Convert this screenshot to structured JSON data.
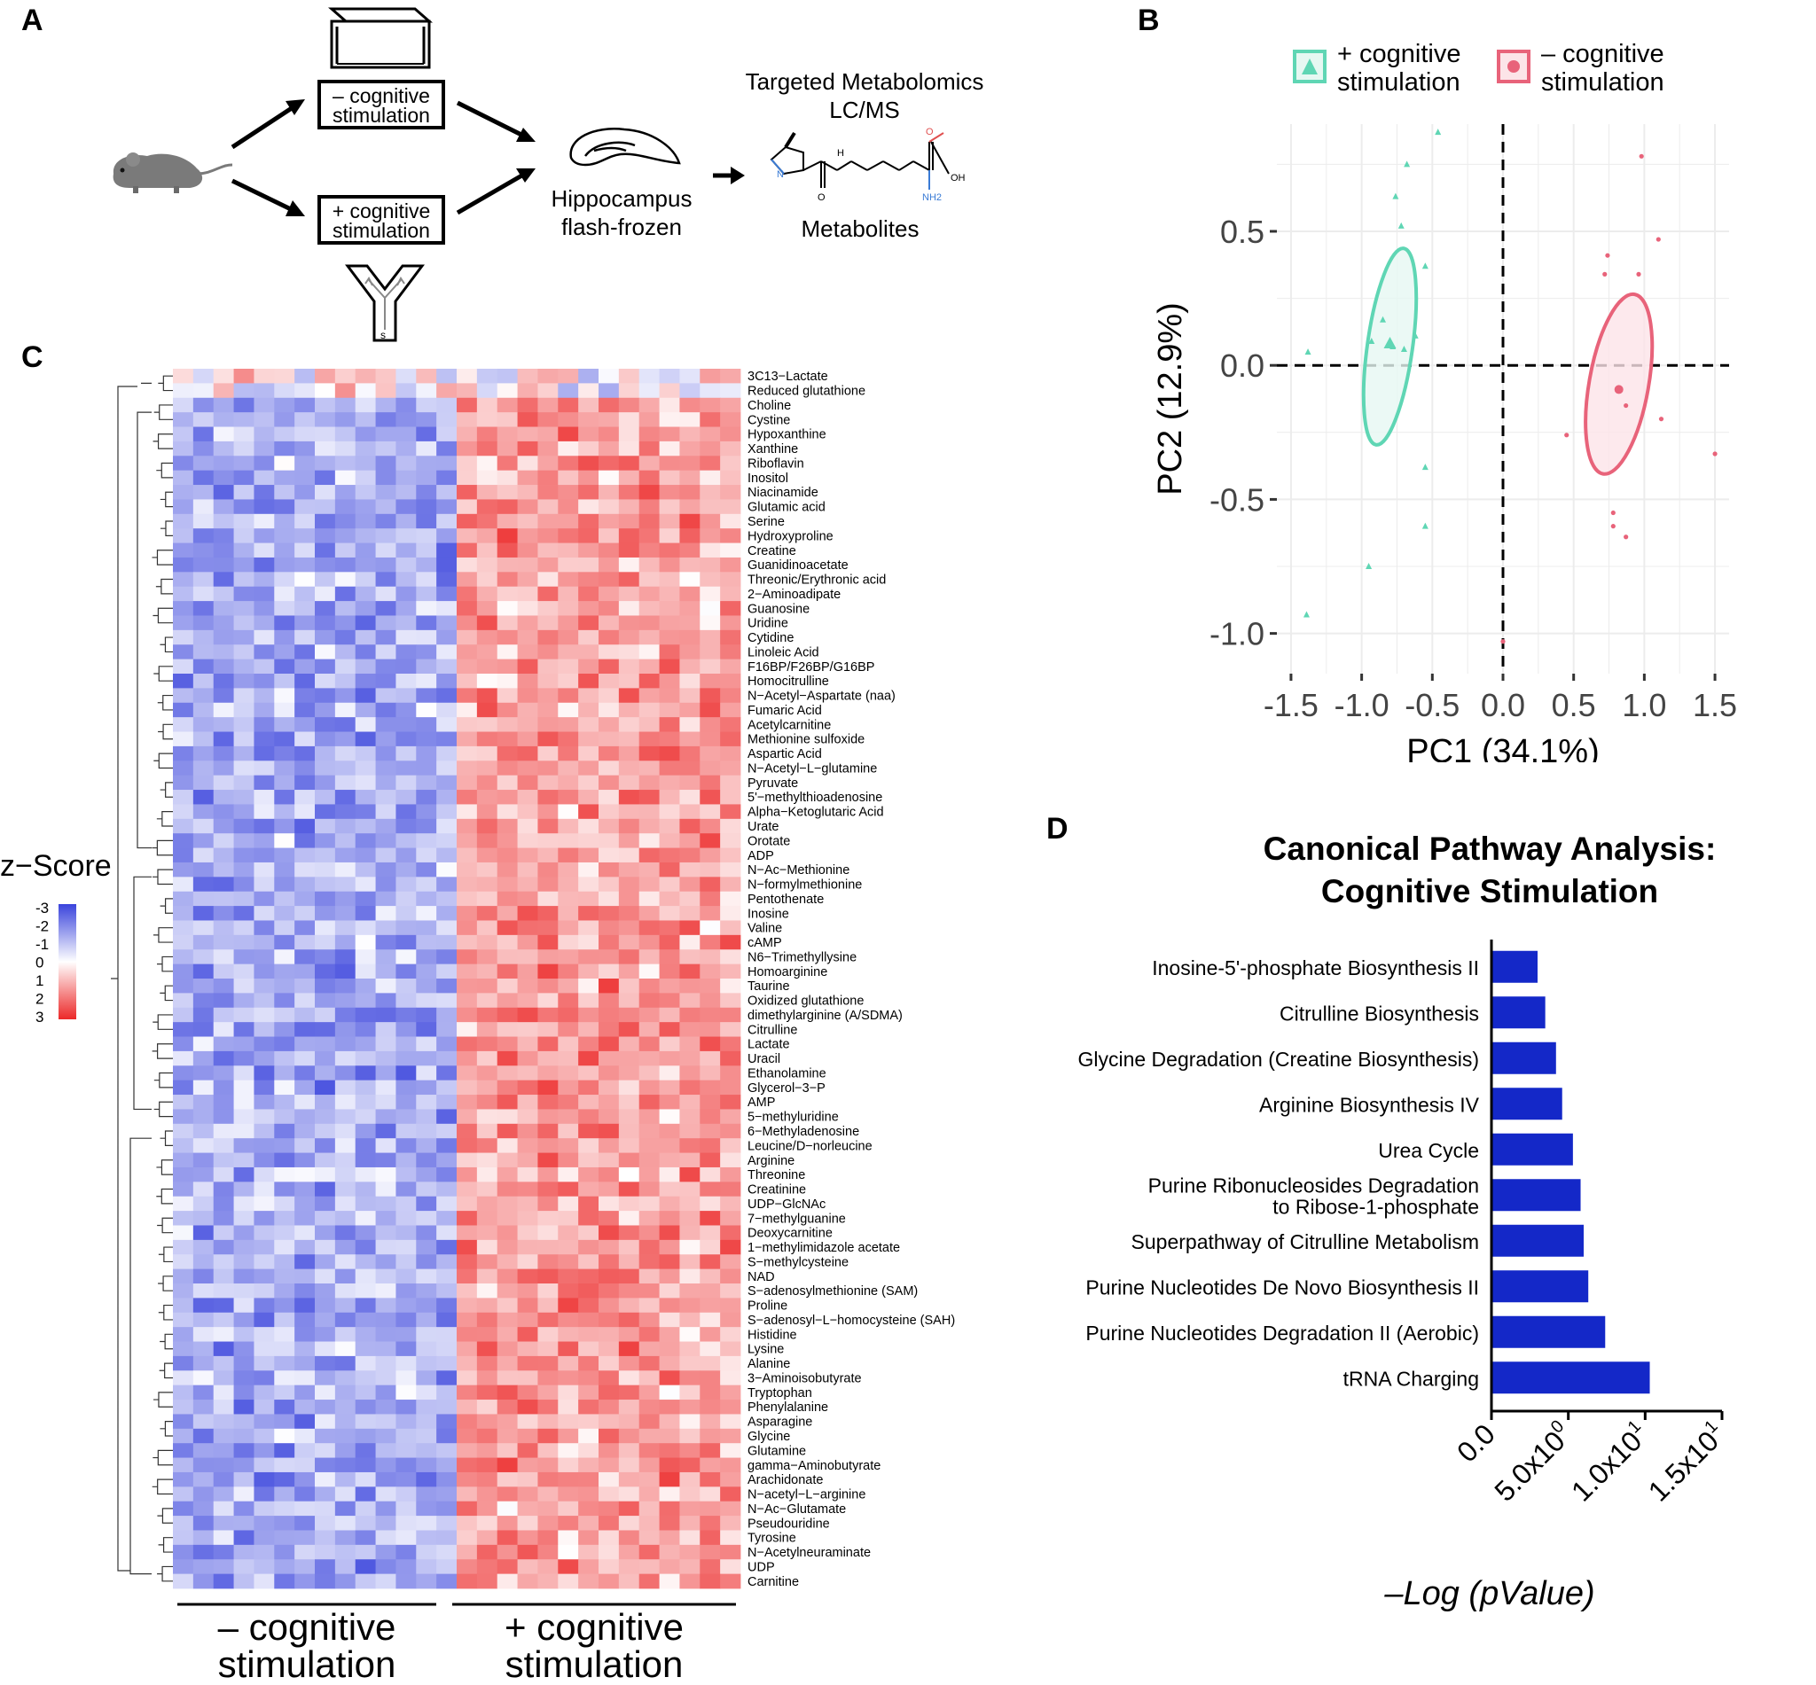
{
  "panels": {
    "a": "A",
    "b": "B",
    "c": "C",
    "d": "D"
  },
  "panel_a": {
    "minus_box_line1": "– cognitive",
    "minus_box_line2": "stimulation",
    "plus_box_line1": "+ cognitive",
    "plus_box_line2": "stimulation",
    "hippocampus_line1": "Hippocampus",
    "hippocampus_line2": "flash-frozen",
    "metabolomics_line1": "Targeted Metabolomics",
    "metabolomics_line2": "LC/MS",
    "metabolites": "Metabolites",
    "maze_label": "s",
    "struct_labels": {
      "h": "H",
      "n": "N",
      "o1": "O",
      "o2": "O",
      "oh": "OH",
      "nh2": "NH2"
    }
  },
  "chart_data": [
    {
      "type": "scatter",
      "panel": "B",
      "xlabel": "PC1 (34.1%)",
      "ylabel": "PC2 (12.9%)",
      "xlim": [
        -1.6,
        1.6
      ],
      "ylim": [
        -1.15,
        0.9
      ],
      "xticks": [
        -1.5,
        -1.0,
        -0.5,
        0.0,
        0.5,
        1.0,
        1.5
      ],
      "xtick_labels": [
        "-1.5",
        "-1.0",
        "-0.5",
        "0.0",
        "0.5",
        "1.0",
        "1.5"
      ],
      "yticks": [
        0.5,
        0.0,
        -0.5,
        -1.0
      ],
      "ytick_labels": [
        "0.5",
        "0.0",
        "-0.5",
        "-1.0"
      ],
      "grid": true,
      "legend": "top",
      "series": [
        {
          "name_line1": "+ cognitive",
          "name_line2": "stimulation",
          "marker": "triangle",
          "color": "#5fd6b4",
          "fill": "#e6f8f2",
          "centroid": [
            -0.8,
            0.08
          ],
          "ellipse": {
            "cx": -0.8,
            "cy": 0.07,
            "rx": 0.16,
            "ry": 0.37,
            "angle": 8
          },
          "points": [
            [
              -1.39,
              -0.93
            ],
            [
              -1.38,
              0.05
            ],
            [
              -0.93,
              0.09
            ],
            [
              -0.95,
              -0.75
            ],
            [
              -0.76,
              0.63
            ],
            [
              -0.72,
              0.52
            ],
            [
              -0.68,
              0.75
            ],
            [
              -0.62,
              0.11
            ],
            [
              -0.55,
              0.37
            ],
            [
              -0.55,
              -0.38
            ],
            [
              -0.55,
              -0.6
            ],
            [
              -0.46,
              0.87
            ],
            [
              -0.85,
              0.17
            ],
            [
              -0.78,
              0.07
            ],
            [
              -0.7,
              0.06
            ]
          ]
        },
        {
          "name_line1": "– cognitive",
          "name_line2": "stimulation",
          "marker": "circle",
          "color": "#e8637a",
          "fill": "#fce4e8",
          "centroid": [
            0.82,
            -0.09
          ],
          "ellipse": {
            "cx": 0.82,
            "cy": -0.07,
            "rx": 0.21,
            "ry": 0.34,
            "angle": 10
          },
          "points": [
            [
              0.0,
              -1.03
            ],
            [
              0.45,
              -0.26
            ],
            [
              0.72,
              0.34
            ],
            [
              0.74,
              0.41
            ],
            [
              0.78,
              -0.55
            ],
            [
              0.78,
              -0.6
            ],
            [
              0.87,
              -0.15
            ],
            [
              0.87,
              -0.64
            ],
            [
              0.96,
              0.34
            ],
            [
              0.98,
              0.78
            ],
            [
              1.1,
              0.47
            ],
            [
              1.12,
              -0.2
            ],
            [
              1.5,
              -0.33
            ]
          ]
        }
      ]
    },
    {
      "type": "heatmap",
      "panel": "C",
      "legend_title": "z−Score",
      "legend_ticks": [
        "-3",
        "-2",
        "-1",
        "0",
        "1",
        "2",
        "3"
      ],
      "group_labels": [
        {
          "line1": "– cognitive",
          "line2": "stimulation"
        },
        {
          "line1": "+ cognitive",
          "line2": "stimulation"
        }
      ],
      "columns_per_group": 14,
      "rows": [
        "3C13−Lactate",
        "Reduced glutathione",
        "Choline",
        "Cystine",
        "Hypoxanthine",
        "Xanthine",
        "Riboflavin",
        "Inositol",
        "Niacinamide",
        "Glutamic acid",
        "Serine",
        "Hydroxyproline",
        "Creatine",
        "Guanidinoacetate",
        "Threonic/Erythronic acid",
        "2−Aminoadipate",
        "Guanosine",
        "Uridine",
        "Cytidine",
        "Linoleic Acid",
        "F16BP/F26BP/G16BP",
        "Homocitrulline",
        "N−Acetyl−Aspartate (naa)",
        "Fumaric Acid",
        "Acetylcarnitine",
        "Methionine sulfoxide",
        "Aspartic Acid",
        "N−Acetyl−L−glutamine",
        "Pyruvate",
        "5'−methylthioadenosine",
        "Alpha−Ketoglutaric Acid",
        "Urate",
        "Orotate",
        "ADP",
        "N−Ac−Methionine",
        "N−formylmethionine",
        "Pentothenate",
        "Inosine",
        "Valine",
        "cAMP",
        "N6−Trimethyllysine",
        "Homoarginine",
        "Taurine",
        "Oxidized glutathione",
        "dimethylarginine (A/SDMA)",
        "Citrulline",
        "Lactate",
        "Uracil",
        "Ethanolamine",
        "Glycerol−3−P",
        "AMP",
        "5−methyluridine",
        "6−Methyladenosine",
        "Leucine/D−norleucine",
        "Arginine",
        "Threonine",
        "Creatinine",
        "UDP−GlcNAc",
        "7−methylguanine",
        "Deoxycarnitine",
        "1−methylimidazole acetate",
        "S−methylcysteine",
        "NAD",
        "S−adenosylmethionine (SAM)",
        "Proline",
        "S−adenosyl−L−homocysteine (SAH)",
        "Histidine",
        "Lysine",
        "Alanine",
        "3−Aminoisobutyrate",
        "Tryptophan",
        "Phenylalanine",
        "Asparagine",
        "Glycine",
        "Glutamine",
        "gamma−Aminobutyrate",
        "Arachidonate",
        "N−acetyl−L−arginine",
        "N−Ac−Glutamate",
        "Pseudouridine",
        "Tyrosine",
        "N−Acetylneuraminate",
        "UDP",
        "Carnitine"
      ]
    },
    {
      "type": "bar",
      "orientation": "horizontal",
      "panel": "D",
      "title_line1": "Canonical Pathway Analysis:",
      "title_line2": "Cognitive Stimulation",
      "xlabel": "–Log (pValue)",
      "xlim": [
        0,
        15
      ],
      "xticks": [
        0,
        5,
        10,
        15
      ],
      "xtick_labels": [
        {
          "base": "0.0",
          "exp": ""
        },
        {
          "base": "5.0x10",
          "exp": "0"
        },
        {
          "base": "1.0x10",
          "exp": "1"
        },
        {
          "base": "1.5x10",
          "exp": "1"
        }
      ],
      "color": "#1428c8",
      "categories": [
        [
          "Inosine-5'-phosphate Biosynthesis II"
        ],
        [
          "Citrulline Biosynthesis"
        ],
        [
          "Glycine Degradation (Creatine Biosynthesis)"
        ],
        [
          "Arginine Biosynthesis IV"
        ],
        [
          "Urea Cycle"
        ],
        [
          "Purine Ribonucleosides Degradation",
          "to Ribose-1-phosphate"
        ],
        [
          "Superpathway of Citrulline Metabolism"
        ],
        [
          "Purine Nucleotides De Novo Biosynthesis II"
        ],
        [
          "Purine Nucleotides Degradation II (Aerobic)"
        ],
        [
          "tRNA Charging"
        ]
      ],
      "values": [
        3.0,
        3.5,
        4.2,
        4.6,
        5.3,
        5.8,
        6.0,
        6.3,
        7.4,
        10.3
      ]
    }
  ]
}
